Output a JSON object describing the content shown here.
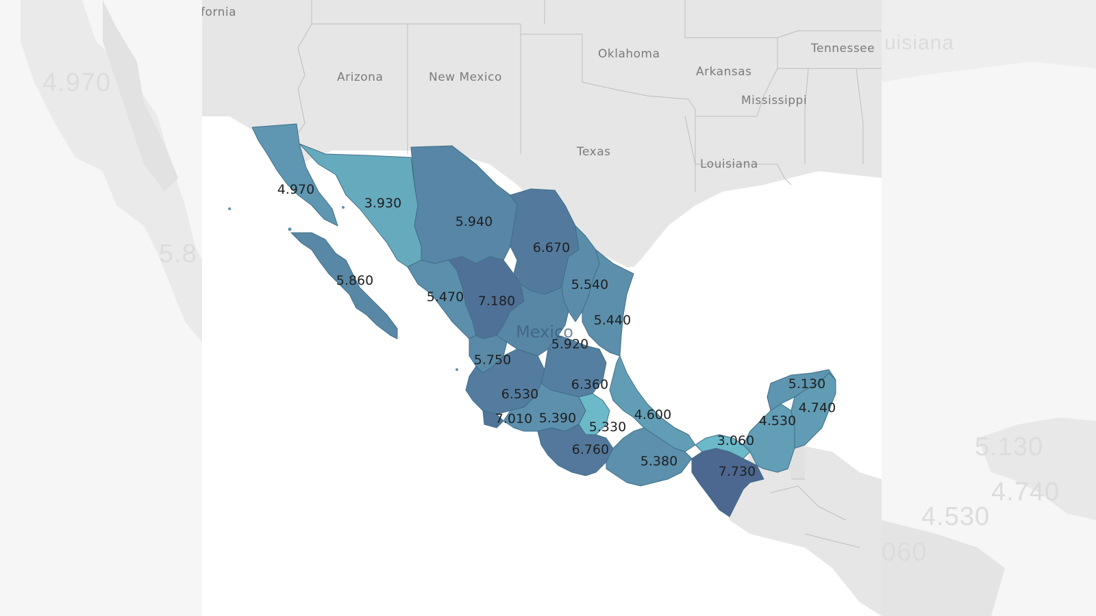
{
  "colors": {
    "land": "#e6e6e6",
    "water": "#ffffff",
    "border": "#bdbdbd",
    "scale_low": "#6cb9c9",
    "scale_high": "#4c6790"
  },
  "context_labels": {
    "california": "fornia",
    "arizona": "Arizona",
    "new_mexico": "New Mexico",
    "oklahoma": "Oklahoma",
    "arkansas": "Arkansas",
    "tennessee": "Tennessee",
    "mississippi": "Mississippi",
    "texas": "Texas",
    "louisiana": "Louisiana",
    "country": "Mexico"
  },
  "ghost_labels": {
    "left_1": "4.970",
    "left_2": "5.8",
    "right_top": "uisiana",
    "right_1": "5.130",
    "right_2": "4.740",
    "right_3": "4.530",
    "right_4": "060"
  },
  "map_data": {
    "type": "choropleth",
    "region": "Mexico",
    "values": [
      {
        "id": "bc",
        "value": "4.970"
      },
      {
        "id": "son",
        "value": "3.930"
      },
      {
        "id": "chih",
        "value": "5.940"
      },
      {
        "id": "coah",
        "value": "6.670"
      },
      {
        "id": "bcs",
        "value": "5.860"
      },
      {
        "id": "nl",
        "value": "5.540"
      },
      {
        "id": "sin",
        "value": "5.470"
      },
      {
        "id": "dgo",
        "value": "7.180"
      },
      {
        "id": "tamps",
        "value": "5.440"
      },
      {
        "id": "zac",
        "value": "5.920"
      },
      {
        "id": "nay",
        "value": "5.750"
      },
      {
        "id": "gto",
        "value": "6.360"
      },
      {
        "id": "jal",
        "value": "6.530"
      },
      {
        "id": "col",
        "value": "7.010"
      },
      {
        "id": "mich",
        "value": "5.390"
      },
      {
        "id": "mex",
        "value": "5.330"
      },
      {
        "id": "ver",
        "value": "4.600"
      },
      {
        "id": "gro",
        "value": "6.760"
      },
      {
        "id": "oax",
        "value": "5.380"
      },
      {
        "id": "chis",
        "value": "7.730"
      },
      {
        "id": "tab",
        "value": "3.060"
      },
      {
        "id": "camp",
        "value": "4.530"
      },
      {
        "id": "qroo",
        "value": "4.740"
      },
      {
        "id": "yuc",
        "value": "5.130"
      }
    ]
  }
}
